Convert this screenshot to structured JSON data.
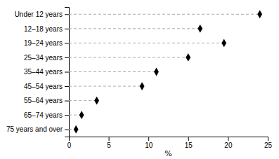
{
  "chart_data": {
    "type": "lollipop",
    "orientation": "horizontal",
    "categories": [
      "Under 12 years",
      "12–18 years",
      "19–24 years",
      "25–34 years",
      "35–44 years",
      "45–54 years",
      "55–64 years",
      "65–74 years",
      "75 years and over"
    ],
    "values": [
      24.0,
      16.5,
      19.5,
      15.0,
      11.0,
      9.2,
      3.5,
      1.6,
      0.9
    ],
    "xlim": [
      0,
      25
    ],
    "xticks": [
      0,
      5,
      10,
      15,
      20,
      25
    ],
    "xlabel": "%",
    "color": "#000000",
    "marker": "diamond",
    "line_style": "dashed",
    "grid": false
  }
}
